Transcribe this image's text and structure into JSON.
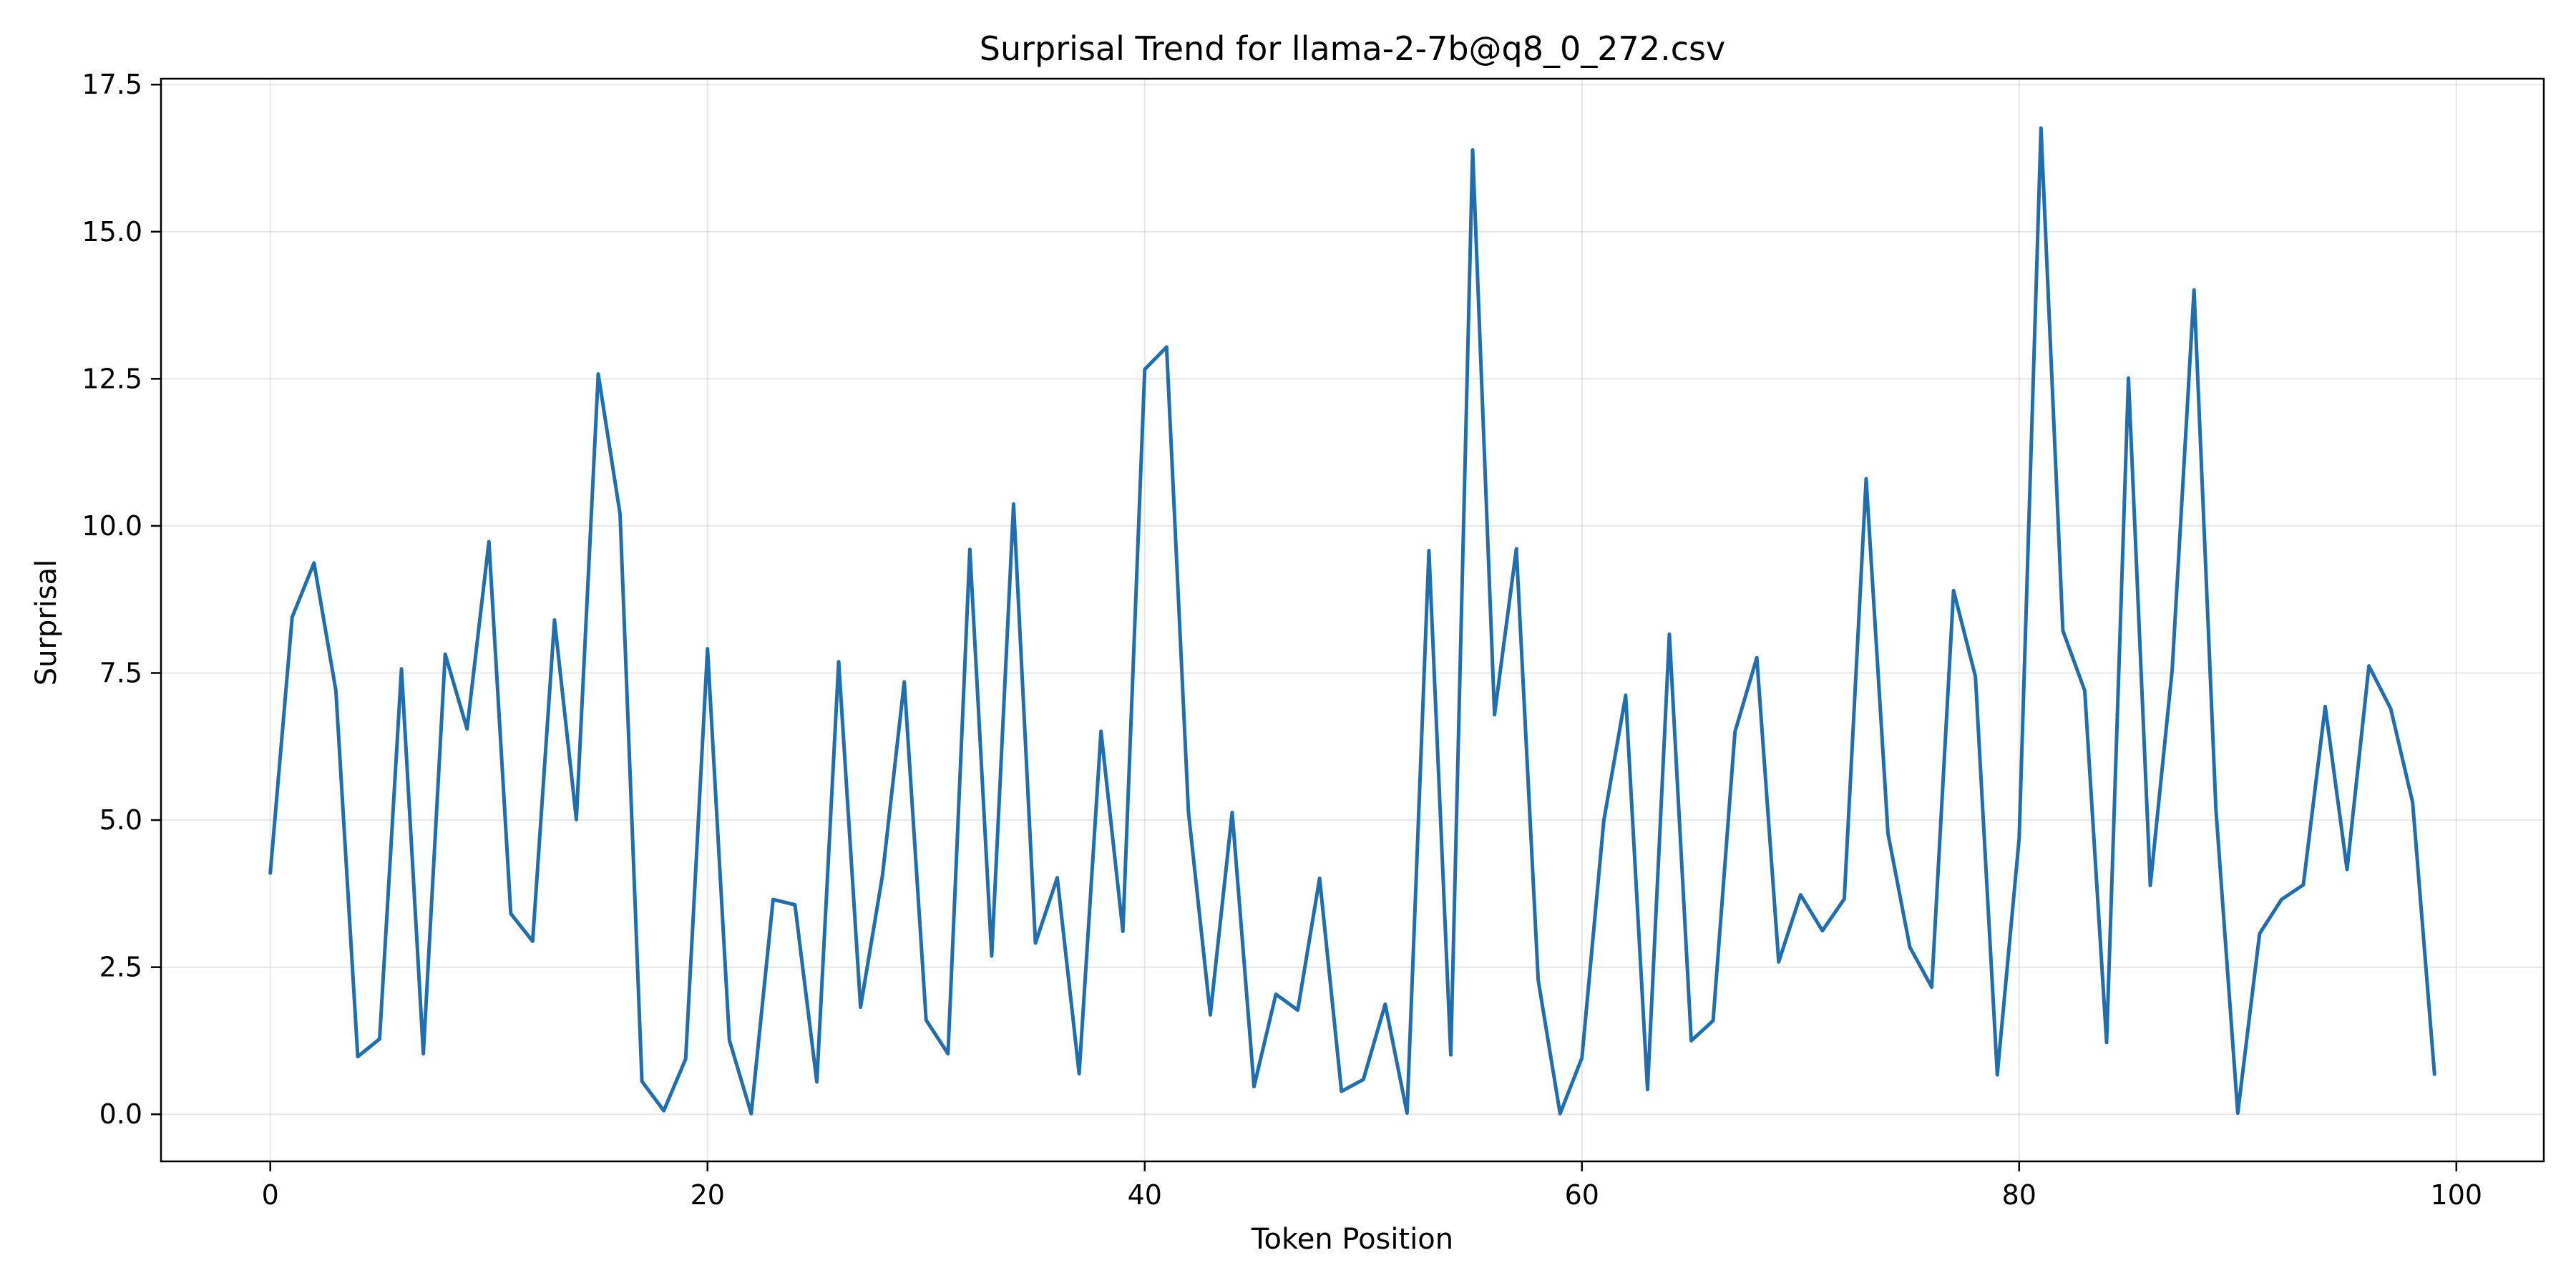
{
  "chart_data": {
    "type": "line",
    "title": "Surprisal Trend for llama-2-7b@q8_0_272.csv",
    "xlabel": "Token Position",
    "ylabel": "Surprisal",
    "xlim": [
      -5,
      104
    ],
    "ylim": [
      -0.8,
      17.6
    ],
    "xticks": [
      0,
      20,
      40,
      60,
      80,
      100
    ],
    "xtick_labels": [
      "0",
      "20",
      "40",
      "60",
      "80",
      "100"
    ],
    "yticks": [
      0,
      2.5,
      5,
      7.5,
      10,
      12.5,
      15,
      17.5
    ],
    "ytick_labels": [
      "0.0",
      "2.5",
      "5.0",
      "7.5",
      "10.0",
      "12.5",
      "15.0",
      "17.5"
    ],
    "grid": true,
    "color": "#1f6fb0",
    "x": [
      0,
      1,
      2,
      3,
      4,
      5,
      6,
      7,
      8,
      9,
      10,
      11,
      12,
      13,
      14,
      15,
      16,
      17,
      18,
      19,
      20,
      21,
      22,
      23,
      24,
      25,
      26,
      27,
      28,
      29,
      30,
      31,
      32,
      33,
      34,
      35,
      36,
      37,
      38,
      39,
      40,
      41,
      42,
      43,
      44,
      45,
      46,
      47,
      48,
      49,
      50,
      51,
      52,
      53,
      54,
      55,
      56,
      57,
      58,
      59,
      60,
      61,
      62,
      63,
      64,
      65,
      66,
      67,
      68,
      69,
      70,
      71,
      72,
      73,
      74,
      75,
      76,
      77,
      78,
      79,
      80,
      81,
      82,
      83,
      84,
      85,
      86,
      87,
      88,
      89,
      90,
      91,
      92,
      93,
      94,
      95,
      96,
      97,
      98,
      99
    ],
    "y": [
      4.1,
      8.45,
      9.37,
      7.2,
      0.98,
      1.28,
      7.57,
      1.03,
      7.82,
      6.55,
      9.73,
      3.41,
      2.94,
      8.4,
      5.01,
      12.58,
      10.2,
      0.56,
      0.06,
      0.94,
      7.91,
      1.26,
      0.01,
      3.65,
      3.56,
      0.55,
      7.69,
      1.82,
      4.05,
      7.35,
      1.6,
      1.03,
      9.6,
      2.69,
      10.37,
      2.91,
      4.02,
      0.69,
      6.51,
      3.11,
      12.66,
      13.04,
      5.14,
      1.69,
      5.13,
      0.47,
      2.04,
      1.77,
      4.01,
      0.39,
      0.59,
      1.87,
      0.02,
      9.58,
      1.01,
      16.39,
      6.79,
      9.61,
      2.28,
      0.01,
      0.96,
      4.99,
      7.12,
      0.42,
      8.16,
      1.25,
      1.59,
      6.5,
      7.76,
      2.59,
      3.73,
      3.12,
      3.66,
      10.8,
      4.77,
      2.84,
      2.16,
      8.9,
      7.44,
      0.67,
      4.69,
      16.76,
      8.22,
      7.2,
      1.22,
      12.51,
      3.89,
      7.55,
      14.01,
      5.19,
      0.02,
      3.07,
      3.65,
      3.9,
      6.93,
      4.16,
      7.62,
      6.89,
      5.3,
      0.68
    ]
  }
}
